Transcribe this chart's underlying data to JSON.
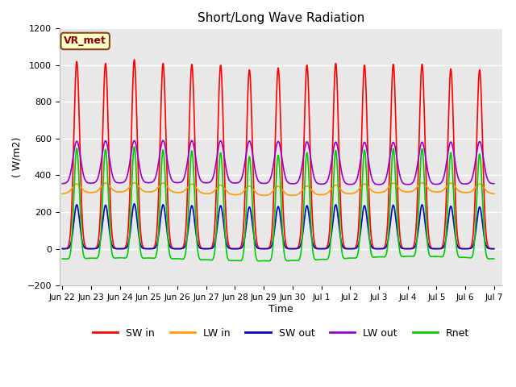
{
  "title": "Short/Long Wave Radiation",
  "ylabel": "( W/m2)",
  "xlabel": "Time",
  "ylim": [
    -200,
    1200
  ],
  "background_color": "#e8e8e8",
  "plot_bg_color": "#e8e8e8",
  "grid_color": "white",
  "series": {
    "SW_in": {
      "color": "#ff0000",
      "label": "SW in",
      "lw": 1.2
    },
    "LW_in": {
      "color": "#ff9900",
      "label": "LW in",
      "lw": 1.2
    },
    "SW_out": {
      "color": "#0000cc",
      "label": "SW out",
      "lw": 1.2
    },
    "LW_out": {
      "color": "#9900cc",
      "label": "LW out",
      "lw": 1.2
    },
    "Rnet": {
      "color": "#00cc00",
      "label": "Rnet",
      "lw": 1.2
    }
  },
  "annotation": "VR_met",
  "num_days": 15,
  "tick_labels": [
    "Jun 22",
    "Jun 23",
    "Jun 24",
    "Jun 25",
    "Jun 26",
    "Jun 27",
    "Jun 28",
    "Jun 29",
    "Jun 30",
    "Jul 1",
    "Jul 2",
    "Jul 3",
    "Jul 4",
    "Jul 5",
    "Jul 6",
    "Jul 7"
  ]
}
